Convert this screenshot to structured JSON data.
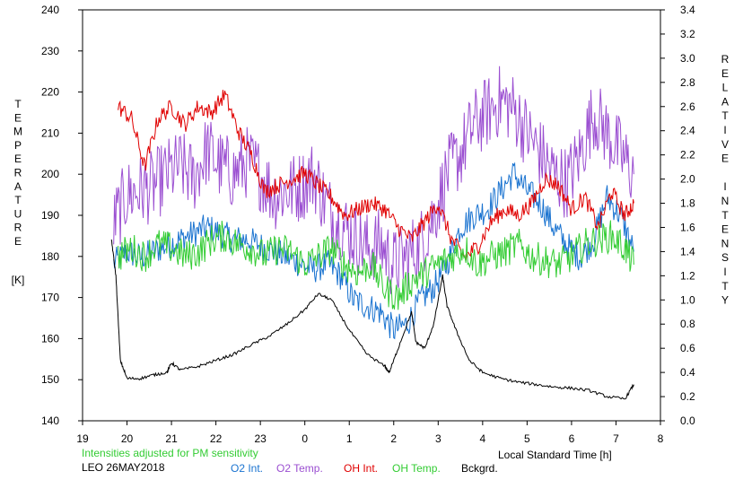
{
  "chart_data": {
    "type": "line",
    "xlabel": "Local Standard Time [h]",
    "x_ticks": [
      "19",
      "20",
      "21",
      "22",
      "23",
      "0",
      "1",
      "2",
      "3",
      "4",
      "5",
      "6",
      "7",
      "8"
    ],
    "xlim": [
      19,
      32
    ],
    "left_axis": {
      "label_letters": [
        "T",
        "E",
        "M",
        "P",
        "E",
        "R",
        "A",
        "T",
        "U",
        "R",
        "E"
      ],
      "unit": "[K]",
      "ticks": [
        140,
        150,
        160,
        170,
        180,
        190,
        200,
        210,
        220,
        230,
        240
      ],
      "ylim": [
        140,
        240
      ]
    },
    "right_axis": {
      "label_letters": [
        "R",
        "E",
        "L",
        "A",
        "T",
        "I",
        "V",
        "E",
        "",
        "I",
        "N",
        "T",
        "E",
        "N",
        "S",
        "I",
        "T",
        "Y"
      ],
      "ticks": [
        "0.0",
        "0.2",
        "0.4",
        "0.6",
        "0.8",
        "1.0",
        "1.2",
        "1.4",
        "1.6",
        "1.8",
        "2.0",
        "2.2",
        "2.4",
        "2.6",
        "2.8",
        "3.0",
        "3.2",
        "3.4"
      ],
      "ylim": [
        0,
        3.4
      ]
    },
    "note": "Intensities adjusted for PM sensitivity",
    "station": "LEO 26MAY2018",
    "series": [
      {
        "name": "O2 Int.",
        "axis": "right",
        "color": "#1a73d0",
        "x": [
          19.7,
          20,
          20.3,
          20.6,
          20.9,
          21.2,
          21.5,
          21.8,
          22.1,
          22.4,
          22.7,
          23,
          23.3,
          23.6,
          23.9,
          24.2,
          24.5,
          24.8,
          25.1,
          25.4,
          25.7,
          26,
          26.3,
          26.6,
          26.9,
          27.2,
          27.5,
          27.8,
          28.1,
          28.4,
          28.7,
          29,
          29.3,
          29.6,
          29.9,
          30.2,
          30.5,
          30.8,
          31.1,
          31.4
        ],
        "values": [
          1.3,
          1.4,
          1.35,
          1.4,
          1.45,
          1.5,
          1.55,
          1.6,
          1.55,
          1.5,
          1.5,
          1.45,
          1.4,
          1.35,
          1.3,
          1.25,
          1.3,
          1.2,
          1.0,
          0.95,
          0.9,
          0.75,
          0.8,
          1.0,
          1.1,
          1.3,
          1.6,
          1.7,
          1.75,
          1.9,
          2.05,
          1.9,
          1.8,
          1.6,
          1.45,
          1.35,
          1.5,
          1.85,
          1.7,
          1.4
        ]
      },
      {
        "name": "O2 Temp.",
        "axis": "left",
        "color": "#9b4fd1",
        "x": [
          19.7,
          20,
          20.3,
          20.6,
          20.9,
          21.2,
          21.5,
          21.8,
          22.1,
          22.4,
          22.7,
          23,
          23.3,
          23.6,
          23.9,
          24.2,
          24.5,
          24.8,
          25.1,
          25.4,
          25.7,
          26,
          26.3,
          26.6,
          26.9,
          27.2,
          27.5,
          27.8,
          28.1,
          28.4,
          28.7,
          29,
          29.3,
          29.6,
          29.9,
          30.2,
          30.5,
          30.8,
          31.1,
          31.4
        ],
        "values": [
          188,
          195,
          196,
          197,
          200,
          202,
          199,
          206,
          202,
          200,
          203,
          200,
          195,
          196,
          197,
          200,
          192,
          188,
          185,
          182,
          183,
          178,
          180,
          183,
          190,
          200,
          205,
          212,
          215,
          218,
          216,
          210,
          205,
          200,
          198,
          205,
          215,
          210,
          205,
          200
        ]
      },
      {
        "name": "OH Int.",
        "axis": "right",
        "color": "#e00000",
        "x": [
          19.8,
          20.1,
          20.4,
          20.7,
          21,
          21.3,
          21.6,
          21.9,
          22.2,
          22.5,
          22.8,
          23.1,
          23.4,
          23.7,
          24,
          24.3,
          24.6,
          24.9,
          25.2,
          25.5,
          25.8,
          26.1,
          26.4,
          26.7,
          27,
          27.3,
          27.6,
          27.9,
          28.2,
          28.5,
          28.8,
          29.1,
          29.4,
          29.7,
          30,
          30.3,
          30.6,
          30.9,
          31.2,
          31.4
        ],
        "values": [
          2.6,
          2.5,
          2.1,
          2.5,
          2.6,
          2.45,
          2.6,
          2.55,
          2.7,
          2.4,
          2.2,
          1.9,
          1.95,
          2.0,
          2.05,
          1.95,
          1.85,
          1.7,
          1.75,
          1.8,
          1.75,
          1.6,
          1.5,
          1.65,
          1.8,
          1.5,
          1.35,
          1.45,
          1.65,
          1.75,
          1.7,
          1.8,
          2.0,
          1.95,
          1.75,
          1.85,
          1.6,
          1.9,
          1.7,
          1.8
        ]
      },
      {
        "name": "OH Temp.",
        "axis": "left",
        "color": "#33cc33",
        "x": [
          19.8,
          20.1,
          20.4,
          20.7,
          21,
          21.3,
          21.6,
          21.9,
          22.2,
          22.5,
          22.8,
          23.1,
          23.4,
          23.7,
          24,
          24.3,
          24.6,
          24.9,
          25.2,
          25.5,
          25.8,
          26.1,
          26.4,
          26.7,
          27,
          27.3,
          27.6,
          27.9,
          28.2,
          28.5,
          28.8,
          29.1,
          29.4,
          29.7,
          30,
          30.3,
          30.6,
          30.9,
          31.2,
          31.4
        ],
        "values": [
          180,
          182,
          180,
          183,
          182,
          180,
          181,
          184,
          185,
          183,
          182,
          180,
          182,
          181,
          178,
          180,
          182,
          178,
          176,
          178,
          172,
          170,
          174,
          176,
          178,
          180,
          182,
          178,
          180,
          181,
          183,
          180,
          179,
          178,
          180,
          183,
          184,
          185,
          182,
          178
        ]
      },
      {
        "name": "Bckgrd.",
        "axis": "right",
        "color": "#000000",
        "x": [
          19.65,
          19.75,
          19.85,
          20,
          20.3,
          20.6,
          20.9,
          21.0,
          21.2,
          21.6,
          22,
          22.4,
          22.8,
          23.2,
          23.6,
          24.0,
          24.3,
          24.6,
          25.0,
          25.4,
          25.8,
          25.9,
          26.1,
          26.4,
          26.5,
          26.7,
          26.9,
          27.1,
          27.2,
          27.4,
          27.7,
          28,
          28.4,
          28.8,
          29.2,
          29.6,
          30,
          30.4,
          30.8,
          31.2,
          31.4
        ],
        "values": [
          1.5,
          1.2,
          0.5,
          0.35,
          0.35,
          0.38,
          0.4,
          0.48,
          0.42,
          0.45,
          0.5,
          0.55,
          0.63,
          0.7,
          0.8,
          0.92,
          1.05,
          1.0,
          0.75,
          0.55,
          0.45,
          0.4,
          0.6,
          0.9,
          0.65,
          0.6,
          0.8,
          1.2,
          0.95,
          0.75,
          0.5,
          0.4,
          0.35,
          0.32,
          0.3,
          0.28,
          0.27,
          0.25,
          0.2,
          0.18,
          0.3
        ]
      }
    ]
  }
}
